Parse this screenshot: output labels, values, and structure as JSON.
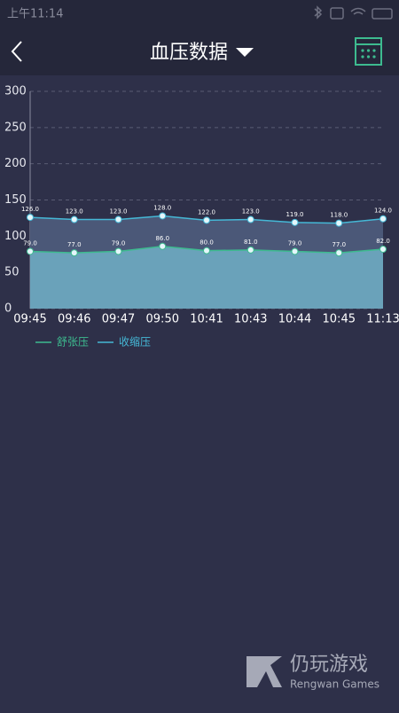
{
  "status_bar": {
    "time": "上午11:14"
  },
  "header": {
    "title": "血压数据"
  },
  "chart_data": {
    "type": "line",
    "area": true,
    "categories": [
      "09:45",
      "09:46",
      "09:47",
      "09:50",
      "10:41",
      "10:43",
      "10:44",
      "10:45",
      "11:13"
    ],
    "series": [
      {
        "name": "舒张压",
        "color": "#3dbb8f",
        "fill": "#6aa2ba",
        "values": [
          79,
          77,
          79,
          86,
          80,
          81,
          79,
          77,
          82
        ],
        "value_labels": [
          "79.0",
          "77.0",
          "79.0",
          "86.0",
          "80.0",
          "81.0",
          "79.0",
          "77.0",
          "82.0"
        ]
      },
      {
        "name": "收缩压",
        "color": "#45b8d6",
        "fill": "#4b5878",
        "values": [
          126,
          123,
          123,
          128,
          122,
          123,
          119,
          118,
          124
        ],
        "value_labels": [
          "126.0",
          "123.0",
          "123.0",
          "128.0",
          "122.0",
          "123.0",
          "119.0",
          "118.0",
          "124.0"
        ]
      }
    ],
    "ylim": [
      0,
      300
    ],
    "yticks": [
      0,
      50,
      100,
      150,
      200,
      250,
      300
    ],
    "grid": true
  },
  "watermark": {
    "name": "仍玩游戏",
    "subtitle": "Rengwan Games"
  }
}
